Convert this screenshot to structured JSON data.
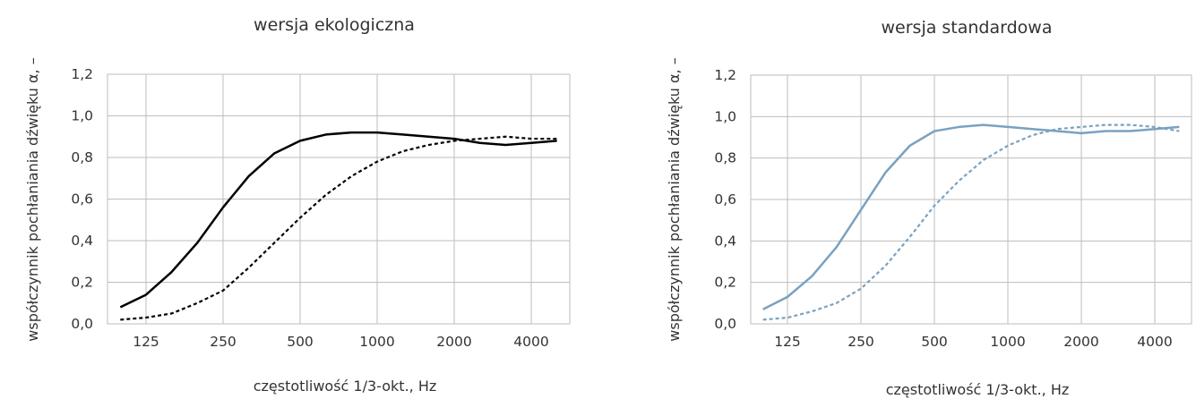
{
  "chart_data": [
    {
      "type": "line",
      "title": "wersja ekologiczna",
      "xlabel": "częstotliwość 1/3-okt., Hz",
      "ylabel": "współczynnik pochłaniania dźwięku α, –",
      "x": [
        100,
        125,
        160,
        200,
        250,
        315,
        400,
        500,
        630,
        800,
        1000,
        1250,
        1600,
        2000,
        2500,
        3150,
        4000,
        5000
      ],
      "x_ticks": [
        "125",
        "250",
        "500",
        "1000",
        "2000",
        "4000"
      ],
      "y_ticks": [
        "0,0",
        "0,2",
        "0,4",
        "0,6",
        "0,8",
        "1,0",
        "1,2"
      ],
      "ylim": [
        0,
        1.2
      ],
      "grid": true,
      "legend": "none",
      "series": [
        {
          "style": "solid",
          "color": "#000000",
          "values": [
            0.08,
            0.14,
            0.25,
            0.39,
            0.56,
            0.71,
            0.82,
            0.88,
            0.91,
            0.92,
            0.92,
            0.91,
            0.9,
            0.89,
            0.87,
            0.86,
            0.87,
            0.88
          ]
        },
        {
          "style": "dashed",
          "color": "#000000",
          "values": [
            0.02,
            0.03,
            0.05,
            0.1,
            0.16,
            0.27,
            0.39,
            0.51,
            0.62,
            0.71,
            0.78,
            0.83,
            0.86,
            0.88,
            0.89,
            0.9,
            0.89,
            0.89
          ]
        }
      ]
    },
    {
      "type": "line",
      "title": "wersja standardowa",
      "xlabel": "częstotliwość 1/3-okt., Hz",
      "ylabel": "współczynnik pochłaniania dźwięku α, –",
      "x": [
        100,
        125,
        160,
        200,
        250,
        315,
        400,
        500,
        630,
        800,
        1000,
        1250,
        1600,
        2000,
        2500,
        3150,
        4000,
        5000
      ],
      "x_ticks": [
        "125",
        "250",
        "500",
        "1000",
        "2000",
        "4000"
      ],
      "y_ticks": [
        "0,0",
        "0,2",
        "0,4",
        "0,6",
        "0,8",
        "1,0",
        "1,2"
      ],
      "ylim": [
        0,
        1.2
      ],
      "grid": true,
      "legend": "none",
      "series": [
        {
          "style": "solid",
          "color": "#7aa1c0",
          "values": [
            0.07,
            0.13,
            0.23,
            0.37,
            0.55,
            0.73,
            0.86,
            0.93,
            0.95,
            0.96,
            0.95,
            0.94,
            0.93,
            0.92,
            0.93,
            0.93,
            0.94,
            0.95
          ]
        },
        {
          "style": "dashed",
          "color": "#7aa1c0",
          "values": [
            0.02,
            0.03,
            0.06,
            0.1,
            0.17,
            0.28,
            0.42,
            0.57,
            0.69,
            0.79,
            0.86,
            0.91,
            0.94,
            0.95,
            0.96,
            0.96,
            0.95,
            0.93
          ]
        }
      ]
    }
  ]
}
